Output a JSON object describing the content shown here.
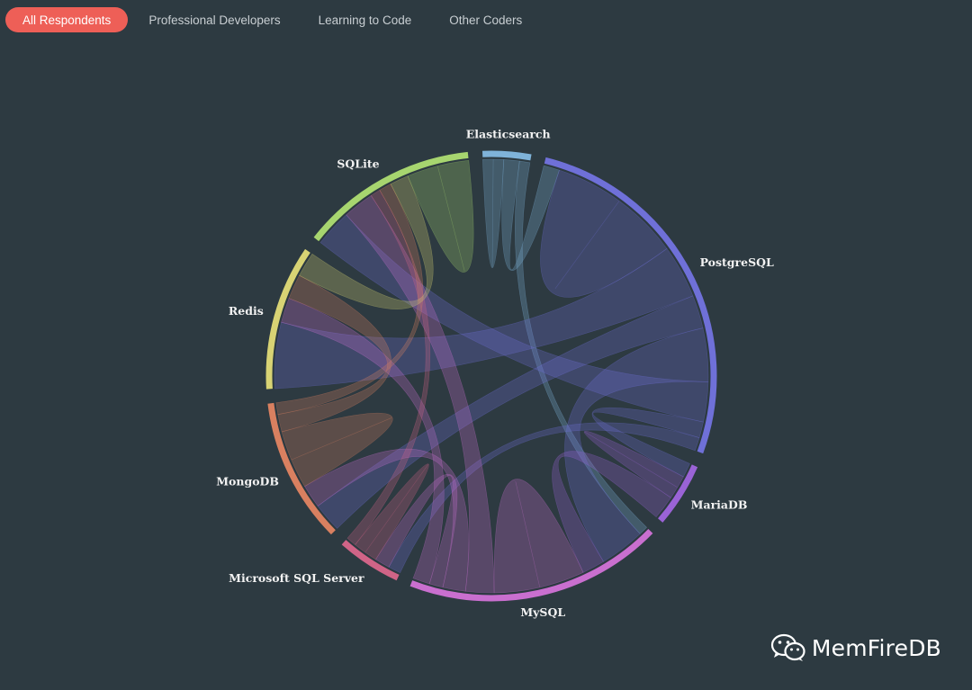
{
  "tabs": [
    {
      "label": "All Respondents",
      "active": true
    },
    {
      "label": "Professional Developers",
      "active": false
    },
    {
      "label": "Learning to Code",
      "active": false
    },
    {
      "label": "Other Coders",
      "active": false
    }
  ],
  "chart_data": {
    "type": "chord",
    "nodes": [
      {
        "name": "Elasticsearch",
        "color": "#7fb3d9",
        "value": 3
      },
      {
        "name": "PostgreSQL",
        "color": "#6f70d8",
        "value": 23
      },
      {
        "name": "MariaDB",
        "color": "#9a63d6",
        "value": 4
      },
      {
        "name": "MySQL",
        "color": "#c96fcf",
        "value": 16
      },
      {
        "name": "Microsoft SQL Server",
        "color": "#d06487",
        "value": 4
      },
      {
        "name": "MongoDB",
        "color": "#d98060",
        "value": 9
      },
      {
        "name": "Redis",
        "color": "#d8d374",
        "value": 9
      },
      {
        "name": "SQLite",
        "color": "#a7d56f",
        "value": 11
      }
    ],
    "links": [
      [
        "Elasticsearch",
        "Elasticsearch",
        0.8
      ],
      [
        "Elasticsearch",
        "PostgreSQL",
        1.2
      ],
      [
        "Elasticsearch",
        "MySQL",
        0.8
      ],
      [
        "PostgreSQL",
        "PostgreSQL",
        5.0
      ],
      [
        "PostgreSQL",
        "Redis",
        4.0
      ],
      [
        "PostgreSQL",
        "MongoDB",
        2.5
      ],
      [
        "PostgreSQL",
        "MySQL",
        4.0
      ],
      [
        "PostgreSQL",
        "SQLite",
        3.0
      ],
      [
        "PostgreSQL",
        "MariaDB",
        1.2
      ],
      [
        "PostgreSQL",
        "Microsoft SQL Server",
        1.0
      ],
      [
        "MariaDB",
        "MariaDB",
        1.0
      ],
      [
        "MariaDB",
        "MySQL",
        2.0
      ],
      [
        "MySQL",
        "MySQL",
        4.0
      ],
      [
        "MySQL",
        "SQLite",
        2.5
      ],
      [
        "MySQL",
        "MongoDB",
        2.0
      ],
      [
        "MySQL",
        "Microsoft SQL Server",
        1.2
      ],
      [
        "MySQL",
        "Redis",
        1.5
      ],
      [
        "Microsoft SQL Server",
        "Microsoft SQL Server",
        1.0
      ],
      [
        "Microsoft SQL Server",
        "SQLite",
        0.8
      ],
      [
        "MongoDB",
        "MongoDB",
        2.5
      ],
      [
        "MongoDB",
        "Redis",
        1.5
      ],
      [
        "MongoDB",
        "SQLite",
        1.0
      ],
      [
        "Redis",
        "SQLite",
        1.5
      ],
      [
        "SQLite",
        "SQLite",
        2.5
      ]
    ]
  },
  "watermark": {
    "text": "MemFireDB",
    "icon": "wechat-icon"
  }
}
